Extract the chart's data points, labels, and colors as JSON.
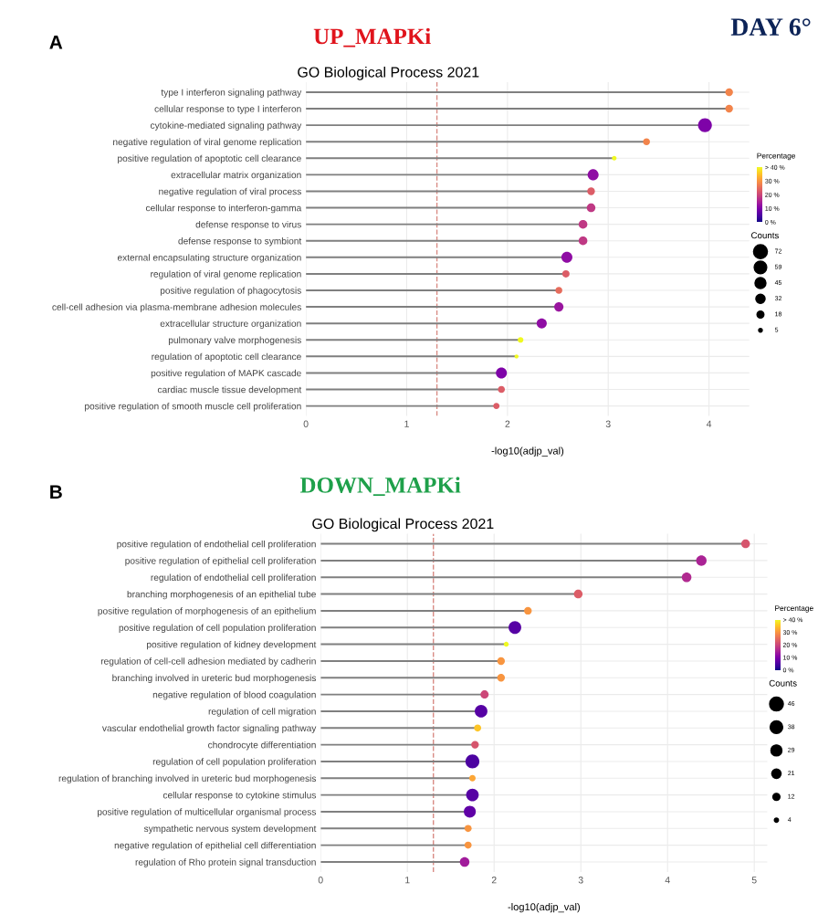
{
  "chart_data": [
    {
      "type": "lollipop",
      "orientation": "horizontal",
      "title": "GO Biological Process 2021",
      "xlabel": "-log10(adjp_val)",
      "clabel": "Percentage",
      "legend_title": "Counts",
      "annotations": [
        "A",
        "UP_MAPKi",
        "DAY 6°"
      ],
      "categories": [
        "type I interferon signaling pathway",
        "cellular response to type I interferon",
        "cytokine-mediated signaling pathway",
        "negative regulation of viral genome replication",
        "positive regulation of apoptotic cell clearance",
        "extracellular matrix organization",
        "negative regulation of viral process",
        "cellular response to interferon-gamma",
        "defense response to virus",
        "defense response to symbiont",
        "external encapsulating structure organization",
        "regulation of viral genome replication",
        "positive regulation of phagocytosis",
        "cell-cell adhesion via plasma-membrane adhesion molecules",
        "extracellular structure organization",
        "pulmonary valve morphogenesis",
        "regulation of apoptotic cell clearance",
        "positive regulation of MAPK cascade",
        "cardiac muscle tissue development",
        "positive regulation of smooth muscle cell proliferation"
      ],
      "values": [
        4.2,
        4.2,
        3.96,
        3.38,
        3.06,
        2.85,
        2.83,
        2.83,
        2.75,
        2.75,
        2.59,
        2.58,
        2.51,
        2.51,
        2.34,
        2.13,
        2.09,
        1.94,
        1.94,
        1.89
      ],
      "cvalues": [
        28,
        28,
        10,
        28,
        40,
        12,
        23,
        18,
        18,
        18,
        12,
        23,
        25,
        13,
        12,
        40,
        40,
        10,
        23,
        23
      ],
      "sizes": [
        22,
        22,
        72,
        18,
        8,
        45,
        22,
        28,
        28,
        28,
        45,
        20,
        18,
        32,
        38,
        12,
        6,
        45,
        18,
        15
      ],
      "size_legend": [
        72,
        59,
        45,
        32,
        18,
        5
      ],
      "clim": [
        0,
        40
      ],
      "cticks": [
        {
          "value": 0,
          "label": "0 %"
        },
        {
          "value": 10,
          "label": "10 %"
        },
        {
          "value": 20,
          "label": "20 %"
        },
        {
          "value": 30,
          "label": "30 %"
        },
        {
          "value": 40,
          "label": "> 40 %"
        }
      ],
      "xlim": [
        0,
        4.4
      ],
      "xticks": [
        0,
        1,
        2,
        3,
        4
      ],
      "grid": true,
      "ref_lines": [
        {
          "axis": "x",
          "value": 1.3,
          "color": "#d98c85",
          "line_style": "dashed"
        }
      ]
    },
    {
      "type": "lollipop",
      "orientation": "horizontal",
      "title": "GO Biological Process 2021",
      "xlabel": "-log10(adjp_val)",
      "clabel": "Percentage",
      "legend_title": "Counts",
      "annotations": [
        "B",
        "DOWN_MAPKi"
      ],
      "categories": [
        "positive regulation of endothelial cell proliferation",
        "positive regulation of epithelial cell proliferation",
        "regulation of endothelial cell proliferation",
        "branching morphogenesis of an epithelial tube",
        "positive regulation of morphogenesis of an epithelium",
        "positive regulation of cell population proliferation",
        "positive regulation of kidney development",
        "regulation of cell-cell adhesion mediated by cadherin",
        "branching involved in ureteric bud morphogenesis",
        "negative regulation of blood coagulation",
        "regulation of cell migration",
        "vascular endothelial growth factor signaling pathway",
        "chondrocyte differentiation",
        "regulation of cell population proliferation",
        "regulation of branching involved in ureteric bud morphogenesis",
        "cellular response to cytokine stimulus",
        "positive regulation of multicellular organismal process",
        "sympathetic nervous system development",
        "negative regulation of epithelial cell differentiation",
        "regulation of Rho protein signal transduction"
      ],
      "values": [
        4.9,
        4.39,
        4.22,
        2.97,
        2.39,
        2.24,
        2.14,
        2.08,
        2.08,
        1.89,
        1.85,
        1.81,
        1.78,
        1.75,
        1.75,
        1.75,
        1.72,
        1.7,
        1.7,
        1.66
      ],
      "cvalues": [
        22,
        15,
        16,
        23,
        30,
        6,
        40,
        30,
        30,
        20,
        6,
        35,
        22,
        5,
        32,
        6,
        7,
        30,
        30,
        14
      ],
      "sizes": [
        18,
        26,
        22,
        18,
        14,
        38,
        6,
        14,
        14,
        16,
        38,
        12,
        14,
        46,
        10,
        38,
        34,
        12,
        12,
        22
      ],
      "size_legend": [
        46,
        38,
        29,
        21,
        12,
        4
      ],
      "clim": [
        0,
        40
      ],
      "cticks": [
        {
          "value": 0,
          "label": "0 %"
        },
        {
          "value": 10,
          "label": "10 %"
        },
        {
          "value": 20,
          "label": "20 %"
        },
        {
          "value": 30,
          "label": "30 %"
        },
        {
          "value": 40,
          "label": "> 40 %"
        }
      ],
      "xlim": [
        0,
        5.15
      ],
      "xticks": [
        0,
        1,
        2,
        3,
        4,
        5
      ],
      "grid": true,
      "ref_lines": [
        {
          "axis": "x",
          "value": 1.3,
          "color": "#d98c85",
          "line_style": "dashed"
        }
      ]
    }
  ]
}
